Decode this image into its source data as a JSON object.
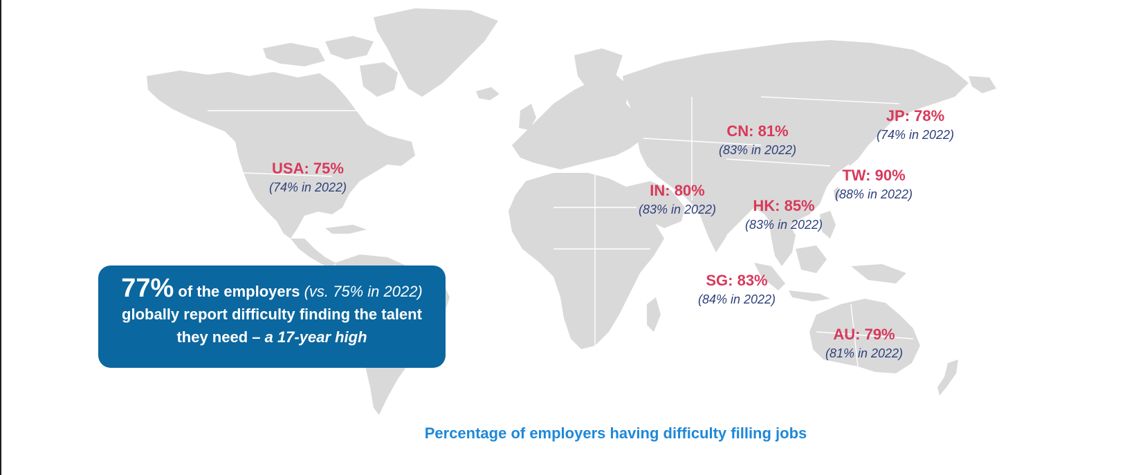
{
  "map": {
    "land_color": "#d9d9d9",
    "border_color": "#ffffff"
  },
  "callouts": [
    {
      "id": "usa",
      "label": "USA: 75%",
      "prev": "(74% in 2022)",
      "current_pct": 75,
      "prev_pct": 74
    },
    {
      "id": "cn",
      "label": "CN: 81%",
      "prev": "(83% in 2022)",
      "current_pct": 81,
      "prev_pct": 83
    },
    {
      "id": "jp",
      "label": "JP: 78%",
      "prev": "(74% in 2022)",
      "current_pct": 78,
      "prev_pct": 74
    },
    {
      "id": "tw",
      "label": "TW: 90%",
      "prev": "(88% in 2022)",
      "current_pct": 90,
      "prev_pct": 88
    },
    {
      "id": "in",
      "label": "IN: 80%",
      "prev": "(83% in 2022)",
      "current_pct": 80,
      "prev_pct": 83
    },
    {
      "id": "hk",
      "label": "HK: 85%",
      "prev": "(83% in 2022)",
      "current_pct": 85,
      "prev_pct": 83
    },
    {
      "id": "sg",
      "label": "SG: 83%",
      "prev": "(84% in 2022)",
      "current_pct": 83,
      "prev_pct": 84
    },
    {
      "id": "au",
      "label": "AU: 79%",
      "prev": "(81% in 2022)",
      "current_pct": 79,
      "prev_pct": 81
    }
  ],
  "highlight": {
    "big": "77%",
    "text1": " of the employers ",
    "italic": "(vs. 75% in 2022)",
    "text2": " globally report difficulty finding the talent they need – ",
    "bold_italic": "a 17-year high",
    "bg_color": "#0b679f"
  },
  "caption": "Percentage of employers having difficulty filling jobs",
  "colors": {
    "value": "#d8395a",
    "prev": "#2f3f7a",
    "caption": "#1e88d8"
  }
}
